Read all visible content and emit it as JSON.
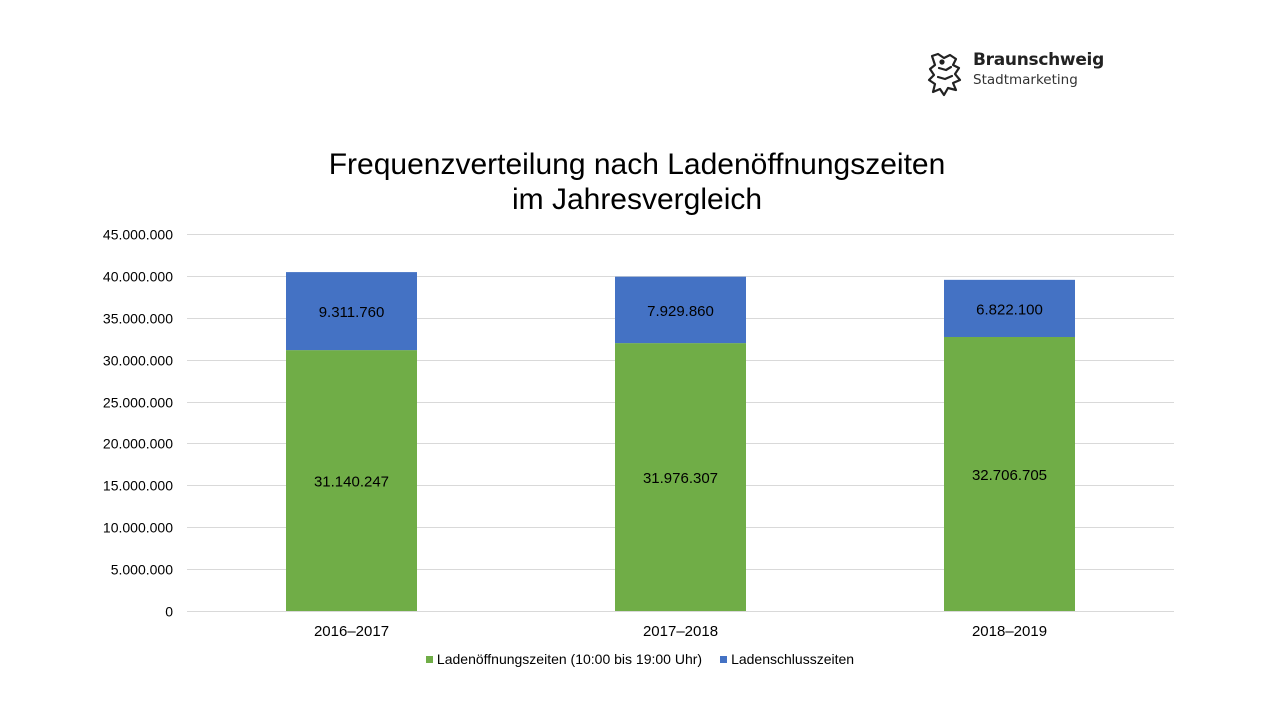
{
  "logo": {
    "name": "Braunschweig",
    "subtitle": "Stadtmarketing",
    "icon": "lion-icon"
  },
  "chart_data": {
    "type": "bar",
    "stacked": true,
    "title": [
      "Frequenzverteilung nach Ladenöffnungszeiten",
      "im Jahresvergleich"
    ],
    "xlabel": "",
    "ylabel": "",
    "categories": [
      "2016–2017",
      "2017–2018",
      "2018–2019"
    ],
    "ylim": [
      0,
      45000000
    ],
    "yticks": [
      0,
      5000000,
      10000000,
      15000000,
      20000000,
      25000000,
      30000000,
      35000000,
      40000000,
      45000000
    ],
    "ytick_labels": [
      "0",
      "5.000.000",
      "10.000.000",
      "15.000.000",
      "20.000.000",
      "25.000.000",
      "30.000.000",
      "35.000.000",
      "40.000.000",
      "45.000.000"
    ],
    "grid": true,
    "legend_position": "bottom",
    "series": [
      {
        "name": "Ladenöffnungszeiten (10:00 bis 19:00 Uhr)",
        "color": "#70AD47",
        "values": [
          31140247,
          31976307,
          32706705
        ],
        "labels": [
          "31.140.247",
          "31.976.307",
          "32.706.705"
        ]
      },
      {
        "name": "Ladenschlusszeiten",
        "color": "#4472C4",
        "values": [
          9311760,
          7929860,
          6822100
        ],
        "labels": [
          "9.311.760",
          "7.929.860",
          "6.822.100"
        ]
      }
    ]
  }
}
